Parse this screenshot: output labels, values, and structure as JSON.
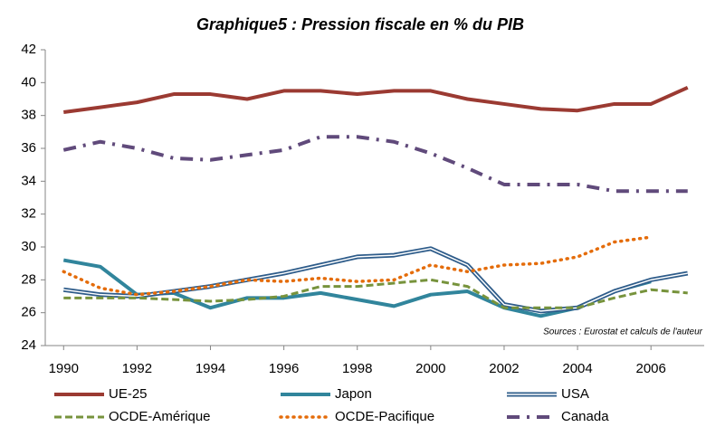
{
  "chart_data": {
    "type": "line",
    "title": "Graphique5 : Pression fiscale en % du PIB",
    "annotation": "Sources : Eurostat et calculs de l'auteur",
    "x": [
      1990,
      1991,
      1992,
      1993,
      1994,
      1995,
      1996,
      1997,
      1998,
      1999,
      2000,
      2001,
      2002,
      2003,
      2004,
      2005,
      2006,
      2007
    ],
    "xlim": [
      1989.5,
      2007.45
    ],
    "xticks": [
      1990,
      1992,
      1994,
      1996,
      1998,
      2000,
      2002,
      2004,
      2006
    ],
    "ylim": [
      24,
      42
    ],
    "yticks": [
      24,
      26,
      28,
      30,
      32,
      34,
      36,
      38,
      40,
      42
    ],
    "grid": false,
    "legend": "bottom",
    "series": [
      {
        "name": "UE-25",
        "color": "#9b3a32",
        "style": "solid",
        "values": [
          38.2,
          38.5,
          38.8,
          39.3,
          39.3,
          39.0,
          39.5,
          39.5,
          39.3,
          39.5,
          39.5,
          39.0,
          38.7,
          38.4,
          38.3,
          38.7,
          38.7,
          39.7
        ]
      },
      {
        "name": "Japon",
        "color": "#31859c",
        "style": "solid",
        "values": [
          29.2,
          28.8,
          27.1,
          27.2,
          26.3,
          26.9,
          26.9,
          27.2,
          26.8,
          26.4,
          27.1,
          27.3,
          26.3,
          25.8,
          26.3,
          27.3,
          27.9,
          null
        ]
      },
      {
        "name": "USA",
        "color": "#2e5c8a",
        "style": "double",
        "values": [
          27.4,
          27.1,
          27.0,
          27.3,
          27.6,
          28.0,
          28.4,
          28.9,
          29.4,
          29.5,
          29.9,
          28.9,
          26.5,
          26.1,
          26.3,
          27.3,
          28.0,
          28.4
        ]
      },
      {
        "name": "OCDE-Amérique",
        "color": "#77933c",
        "style": "dashed",
        "values": [
          26.9,
          26.9,
          26.9,
          26.8,
          26.7,
          26.8,
          27.0,
          27.6,
          27.6,
          27.8,
          28.0,
          27.6,
          26.3,
          26.3,
          26.3,
          26.9,
          27.4,
          27.2
        ]
      },
      {
        "name": "OCDE-Pacifique",
        "color": "#e46c0a",
        "style": "dotted",
        "values": [
          28.5,
          27.5,
          27.1,
          27.3,
          27.6,
          28.0,
          27.9,
          28.1,
          27.9,
          28.0,
          28.9,
          28.5,
          28.9,
          29.0,
          29.4,
          30.3,
          30.6,
          null
        ]
      },
      {
        "name": "Canada",
        "color": "#604a7b",
        "style": "dashdot",
        "values": [
          35.9,
          36.4,
          36.0,
          35.4,
          35.3,
          35.6,
          35.9,
          36.7,
          36.7,
          36.4,
          35.7,
          34.8,
          33.8,
          33.8,
          33.8,
          33.4,
          33.4,
          33.4
        ]
      }
    ]
  }
}
